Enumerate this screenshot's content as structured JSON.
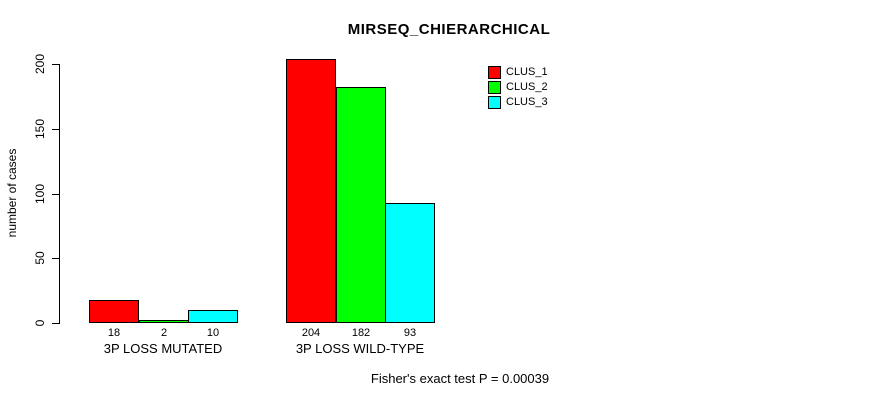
{
  "title": "MIRSEQ_CHIERARCHICAL",
  "footnote": "Fisher's exact test P = 0.00039",
  "colors": {
    "clus_1": "#FF0000",
    "clus_2": "#00FF00",
    "clus_3": "#00FFFF",
    "axis": "#000000",
    "background": "#FFFFFF"
  },
  "legend": [
    {
      "label": "CLUS_1",
      "color": "#FF0000"
    },
    {
      "label": "CLUS_2",
      "color": "#00FF00"
    },
    {
      "label": "CLUS_3",
      "color": "#00FFFF"
    }
  ],
  "chart_data": {
    "type": "bar",
    "title": "MIRSEQ_CHIERARCHICAL",
    "xlabel": "",
    "ylabel": "number of cases",
    "categories": [
      "3P LOSS MUTATED",
      "3P LOSS WILD-TYPE"
    ],
    "series": [
      {
        "name": "CLUS_1",
        "color": "#FF0000",
        "values": [
          18,
          204
        ]
      },
      {
        "name": "CLUS_2",
        "color": "#00FF00",
        "values": [
          2,
          182
        ]
      },
      {
        "name": "CLUS_3",
        "color": "#00FFFF",
        "values": [
          10,
          93
        ]
      }
    ],
    "bar_value_labels": [
      [
        18,
        2,
        10
      ],
      [
        204,
        182,
        93
      ]
    ],
    "yticks": [
      0,
      50,
      100,
      150,
      200
    ],
    "ylim": [
      0,
      200
    ],
    "grid": false,
    "legend_position": "top-right",
    "annotation": "Fisher's exact test P = 0.00039"
  }
}
